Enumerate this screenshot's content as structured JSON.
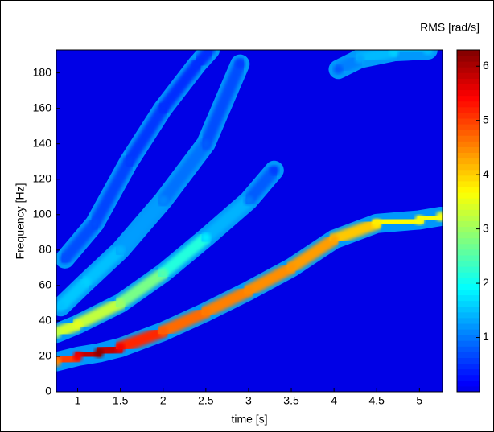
{
  "chart_data": {
    "type": "contour",
    "xlabel": "time [s]",
    "ylabel": "Frequency [Hz]",
    "colorbar_label": "RMS [rad/s]",
    "colormap": "jet",
    "xlim": [
      0.75,
      5.27
    ],
    "xticks": [
      1,
      1.5,
      2,
      2.5,
      3,
      3.5,
      4,
      4.5,
      5
    ],
    "ylim": [
      0,
      193
    ],
    "yticks": [
      0,
      20,
      40,
      60,
      80,
      100,
      120,
      140,
      160,
      180
    ],
    "clim": [
      0,
      6.3
    ],
    "cticks": [
      1,
      2,
      3,
      4,
      5,
      6
    ],
    "series": [
      {
        "x": [
          0.75,
          1,
          1.25,
          1.5,
          2,
          2.5,
          3,
          3.5,
          4,
          4.5,
          5,
          5.25
        ],
        "y": [
          17,
          20,
          22,
          25,
          34,
          45,
          57,
          70,
          86,
          95,
          97,
          99
        ],
        "values": [
          4.5,
          5.5,
          6.2,
          5.5,
          4.8,
          4.6,
          4.5,
          4.4,
          4.3,
          3.8,
          3.6,
          3.6
        ]
      },
      {
        "x": [
          0.75,
          1,
          1.5,
          2,
          2.5,
          3,
          3.3
        ],
        "y": [
          33,
          38,
          50,
          67,
          87,
          108,
          125
        ],
        "values": [
          3.2,
          3.5,
          3.0,
          2.5,
          1.8,
          1.0,
          0.6
        ]
      },
      {
        "x": [
          0.8,
          1.1,
          1.5,
          2,
          2.5,
          2.9
        ],
        "y": [
          48,
          62,
          80,
          108,
          140,
          185
        ],
        "values": [
          1.5,
          1.6,
          1.4,
          1.1,
          0.8,
          0.6
        ]
      },
      {
        "x": [
          0.85,
          1.2,
          1.6,
          2,
          2.4,
          2.55
        ],
        "y": [
          75,
          95,
          130,
          160,
          185,
          193
        ],
        "values": [
          0.7,
          0.7,
          0.6,
          0.5,
          0.5,
          0.5
        ]
      },
      {
        "x": [
          4.05,
          4.3,
          4.7,
          5.1
        ],
        "y": [
          182,
          188,
          192,
          193
        ],
        "values": [
          0.8,
          1.3,
          1.6,
          1.5
        ]
      }
    ]
  }
}
